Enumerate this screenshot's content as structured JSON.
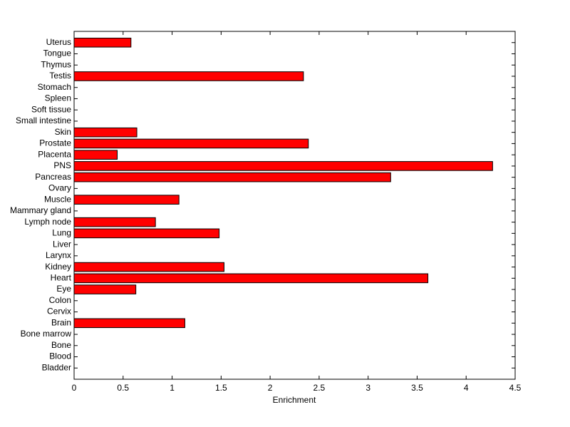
{
  "chart_data": {
    "type": "bar",
    "orientation": "horizontal",
    "xlabel": "Enrichment",
    "categories": [
      "Bladder",
      "Blood",
      "Bone",
      "Bone marrow",
      "Brain",
      "Cervix",
      "Colon",
      "Eye",
      "Heart",
      "Kidney",
      "Larynx",
      "Liver",
      "Lung",
      "Lymph node",
      "Mammary gland",
      "Muscle",
      "Ovary",
      "Pancreas",
      "PNS",
      "Placenta",
      "Prostate",
      "Skin",
      "Small intestine",
      "Soft tissue",
      "Spleen",
      "Stomach",
      "Testis",
      "Thymus",
      "Tongue",
      "Uterus"
    ],
    "values": [
      0,
      0,
      0,
      0,
      1.13,
      0,
      0,
      0.63,
      3.61,
      1.53,
      0,
      0,
      1.48,
      0.83,
      0,
      1.07,
      0,
      3.23,
      4.27,
      0.44,
      2.39,
      0.64,
      0,
      0,
      0,
      0,
      2.34,
      0,
      0,
      0.58
    ],
    "color": "#ff0000",
    "xlim": [
      0,
      4.5
    ],
    "xticks": [
      0,
      0.5,
      1,
      1.5,
      2,
      2.5,
      3,
      3.5,
      4,
      4.5
    ],
    "grid": false
  }
}
